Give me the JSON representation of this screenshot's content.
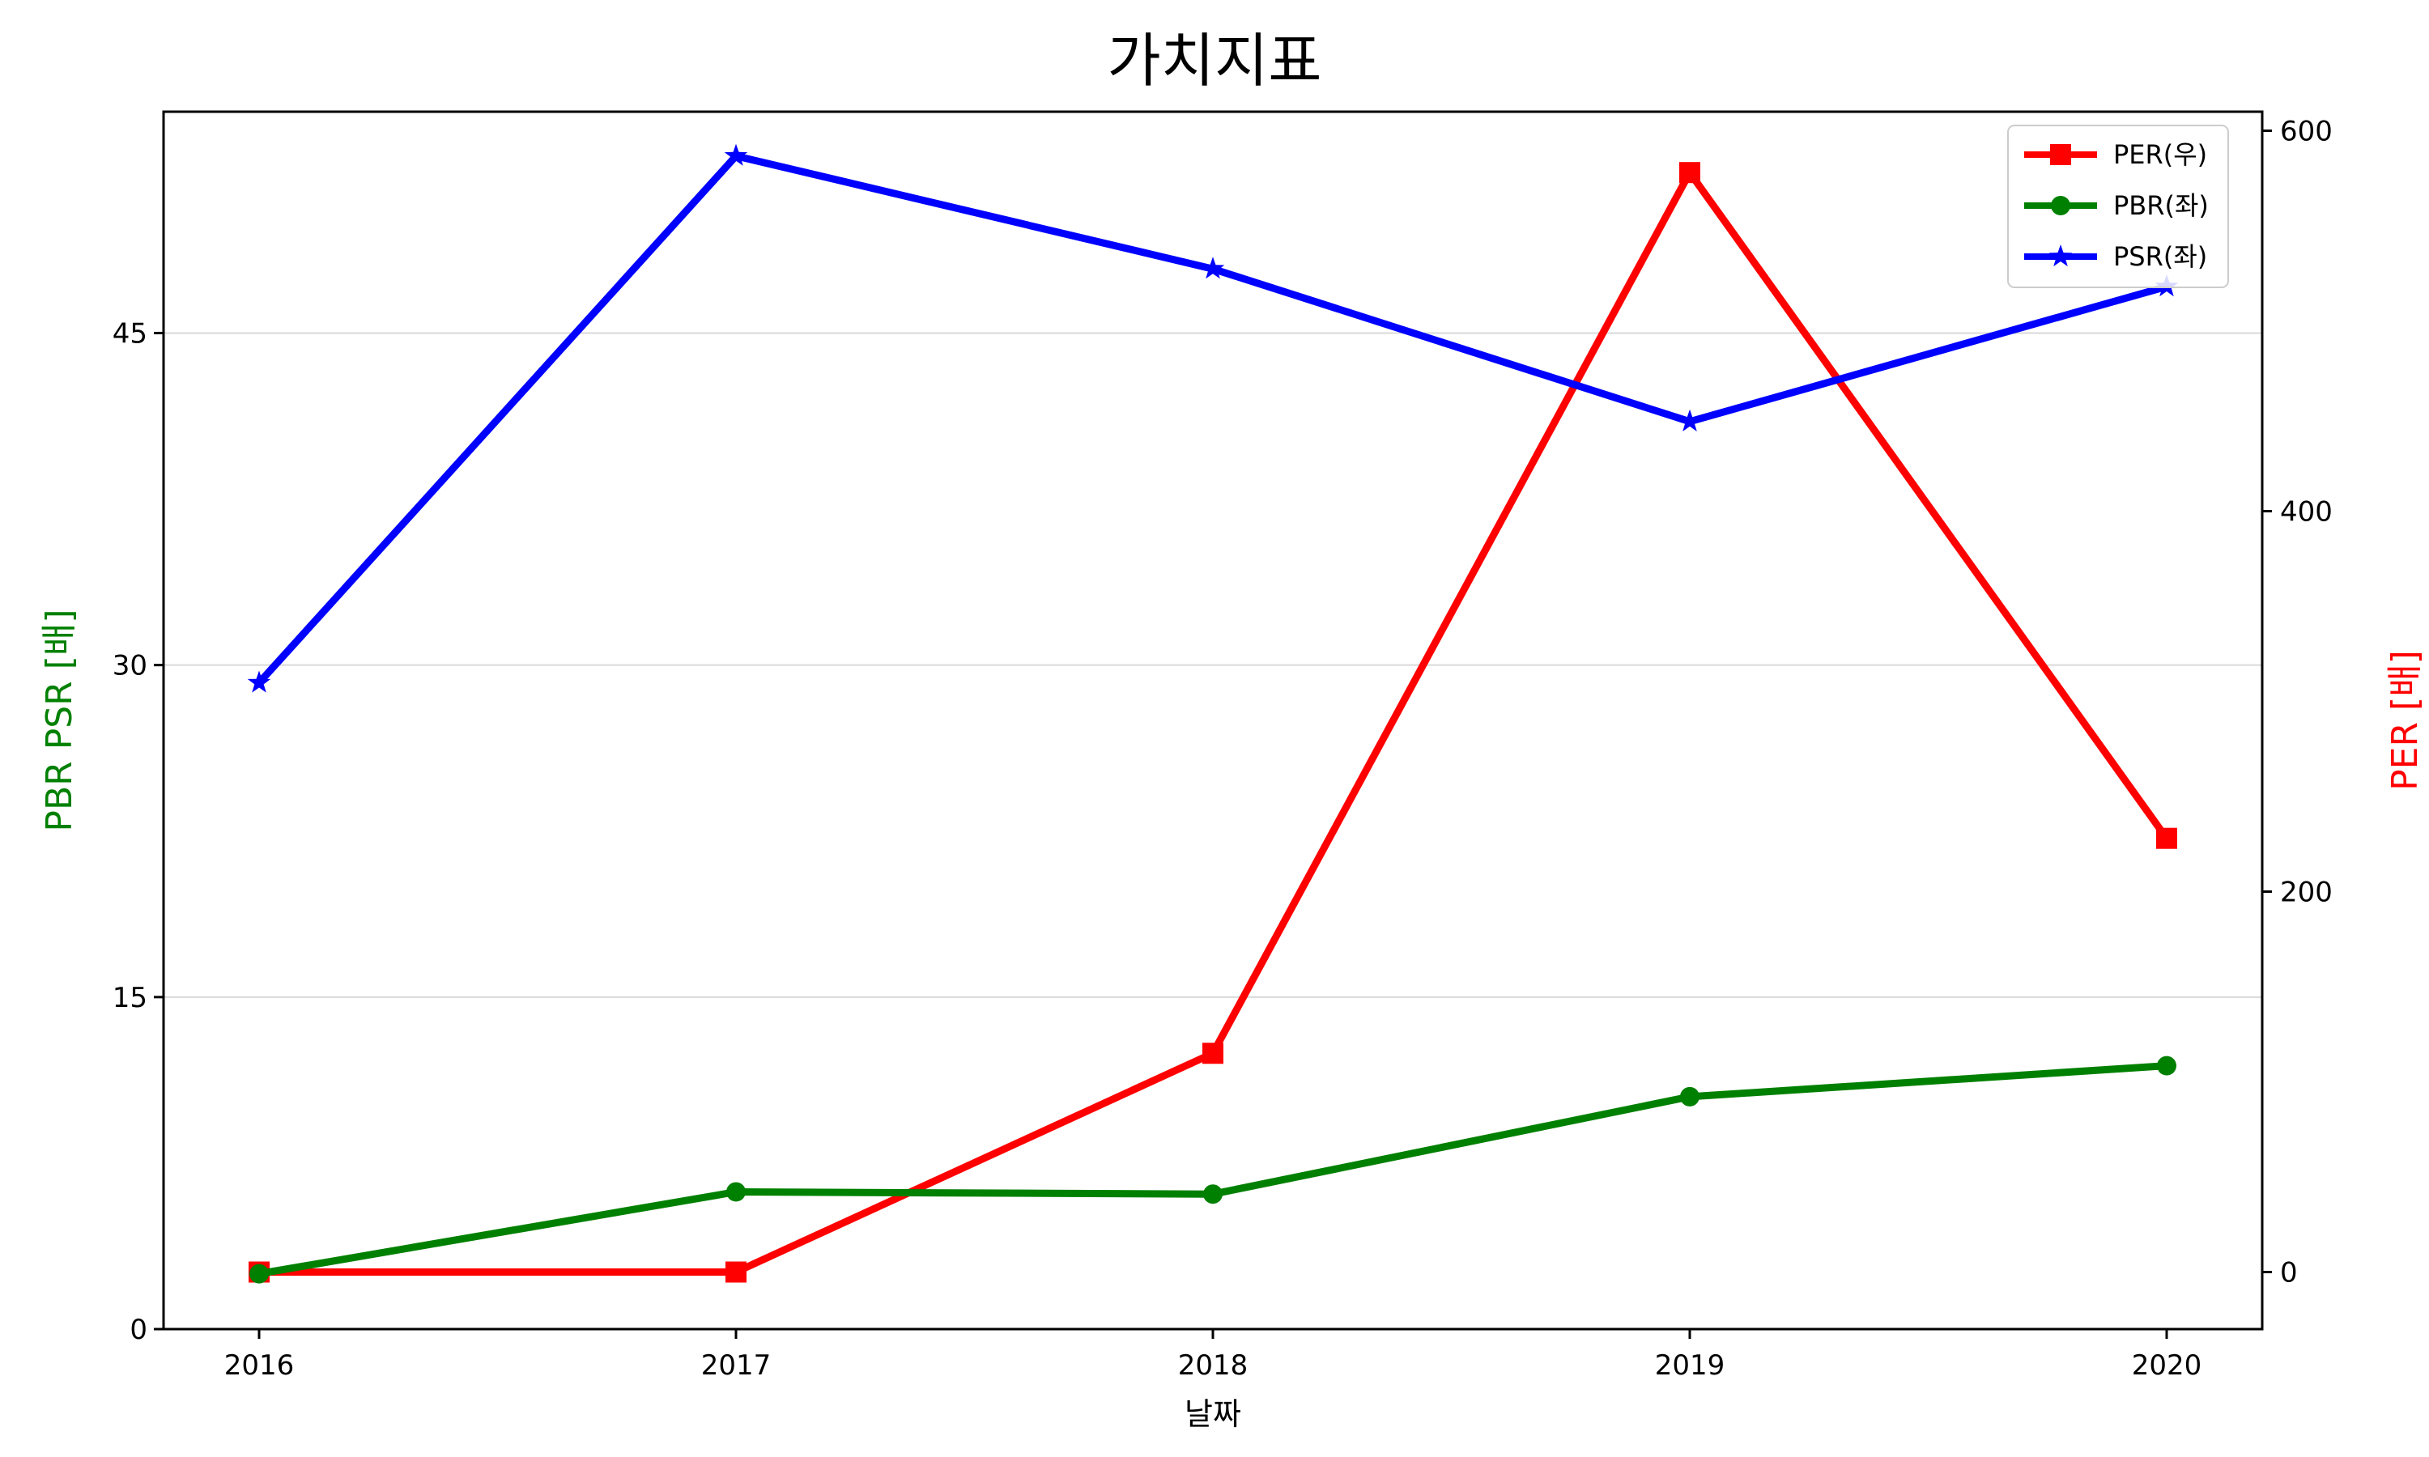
{
  "chart_data": {
    "type": "line",
    "title": "가치지표",
    "xlabel": "날짜",
    "ylabel_left": "PBR PSR [배]",
    "ylabel_right": "PER [배]",
    "x": [
      "2016",
      "2017",
      "2018",
      "2019",
      "2020"
    ],
    "left_axis": {
      "ylim": [
        0,
        55
      ],
      "ticks": [
        "0",
        "15",
        "30",
        "45"
      ],
      "tick_values": [
        0,
        15,
        30,
        45
      ],
      "grid": true
    },
    "right_axis": {
      "ylim": [
        -30,
        610
      ],
      "ticks": [
        "0",
        "200",
        "400",
        "600"
      ],
      "tick_values": [
        0,
        200,
        400,
        600
      ]
    },
    "legend_position": "top-right",
    "series": [
      {
        "name": "PER(우)",
        "axis": "right",
        "color": "#ff0000",
        "marker": "square",
        "values": [
          0,
          0,
          115,
          578,
          228
        ]
      },
      {
        "name": "PBR(좌)",
        "axis": "left",
        "color": "#008000",
        "marker": "circle",
        "values": [
          2.5,
          6.2,
          6.1,
          10.5,
          11.9
        ]
      },
      {
        "name": "PSR(좌)",
        "axis": "left",
        "color": "#0000ff",
        "marker": "star",
        "values": [
          29.2,
          53.0,
          47.9,
          41.0,
          47.1
        ]
      }
    ]
  }
}
